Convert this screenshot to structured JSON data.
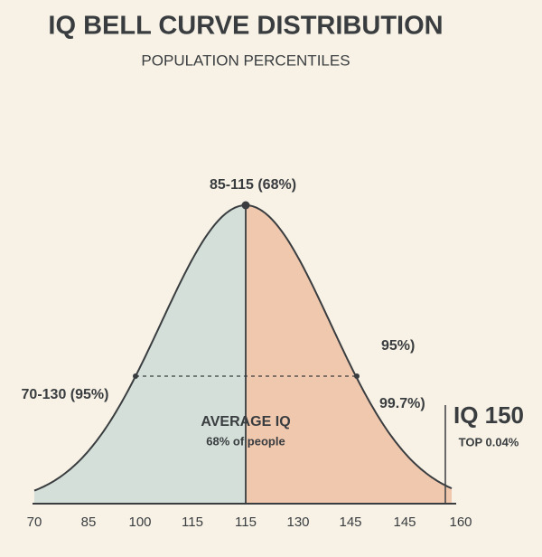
{
  "header": {
    "title": "IQ BELL CURVE DISTRIBUTION",
    "subtitle": "POPULATION PERCENTILES"
  },
  "annotations": {
    "peak": "85-115 (68%)",
    "left_band": "70-130 (95%)",
    "right_band": "95%)",
    "right_tail": "99.7%)",
    "center_title": "AVERAGE IQ",
    "center_note": "68% of people",
    "marker_title": "IQ 150",
    "marker_note": "TOP 0.04%"
  },
  "x_axis_labels": [
    "70",
    "85",
    "100",
    "115",
    "115",
    "130",
    "145",
    "145",
    "160"
  ]
}
